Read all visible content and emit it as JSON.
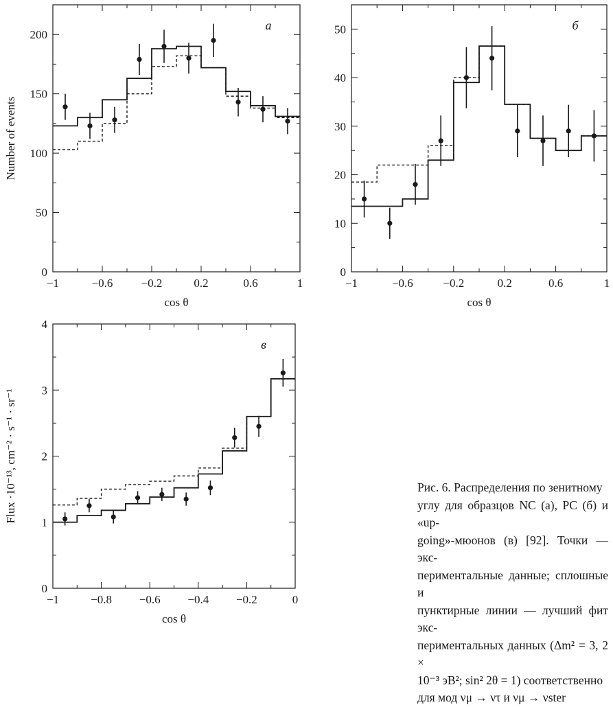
{
  "chart_data": [
    {
      "id": "a",
      "type": "line",
      "panel_label": "a",
      "xlabel": "cos θ",
      "ylabel": "Number of events",
      "xlim": [
        -1,
        1
      ],
      "ylim": [
        0,
        225
      ],
      "x_ticks": [
        -1,
        -0.6,
        -0.2,
        0.2,
        0.6,
        1
      ],
      "x_tick_labels": [
        "−1",
        "−0.6",
        "−0.2",
        "0.2",
        "0.6",
        "1"
      ],
      "y_ticks": [
        0,
        50,
        100,
        150,
        200
      ],
      "y_tick_labels": [
        "0",
        "50",
        "100",
        "150",
        "200"
      ],
      "bin_edges": [
        -1,
        -0.8,
        -0.6,
        -0.4,
        -0.2,
        0,
        0.2,
        0.4,
        0.6,
        0.8,
        1
      ],
      "series": [
        {
          "style": "solid",
          "values": [
            123,
            130,
            145,
            163,
            188,
            190,
            172,
            152,
            140,
            131
          ]
        },
        {
          "style": "dashed",
          "values": [
            103,
            110,
            125,
            150,
            173,
            182,
            172,
            148,
            138,
            130
          ]
        },
        {
          "style": "data points",
          "x": [
            -0.9,
            -0.7,
            -0.5,
            -0.3,
            -0.1,
            0.1,
            0.3,
            0.5,
            0.7,
            0.9
          ],
          "y": [
            139,
            123,
            128,
            179,
            190,
            180,
            195,
            143,
            137,
            127
          ],
          "err": [
            11,
            11,
            11,
            13,
            14,
            13,
            14,
            12,
            11,
            11
          ]
        }
      ]
    },
    {
      "id": "b",
      "type": "line",
      "panel_label": "б",
      "xlabel": "cos θ",
      "ylabel": "",
      "xlim": [
        -1,
        1
      ],
      "ylim": [
        0,
        55
      ],
      "x_ticks": [
        -1,
        -0.6,
        -0.2,
        0.2,
        0.6,
        1
      ],
      "x_tick_labels": [
        "−1",
        "−0.6",
        "−0.2",
        "0.2",
        "0.6",
        "1"
      ],
      "y_ticks": [
        0,
        10,
        20,
        30,
        40,
        50
      ],
      "y_tick_labels": [
        "0",
        "10",
        "20",
        "30",
        "40",
        "50"
      ],
      "bin_edges": [
        -1,
        -0.8,
        -0.6,
        -0.4,
        -0.2,
        0,
        0.2,
        0.4,
        0.6,
        0.8,
        1
      ],
      "series": [
        {
          "style": "solid",
          "values": [
            13.5,
            13.5,
            15,
            23,
            39,
            46.5,
            34.5,
            27.5,
            25,
            28
          ]
        },
        {
          "style": "dashed",
          "values": [
            18.5,
            22,
            22,
            26,
            40,
            46.5,
            34.5,
            27.5,
            25,
            28
          ]
        },
        {
          "style": "data points",
          "x": [
            -0.9,
            -0.7,
            -0.5,
            -0.3,
            -0.1,
            0.1,
            0.3,
            0.5,
            0.7,
            0.9
          ],
          "y": [
            15,
            10,
            18,
            27,
            40,
            44,
            29,
            27,
            29,
            28
          ],
          "err": [
            3.8,
            3.2,
            4.2,
            5.2,
            6.3,
            6.6,
            5.4,
            5.2,
            5.4,
            5.3
          ]
        }
      ]
    },
    {
      "id": "c",
      "type": "line",
      "panel_label": "в",
      "xlabel": "cos θ",
      "ylabel": "Flux ·10⁻¹³, cm⁻² · s⁻¹ · sr⁻¹",
      "xlim": [
        -1,
        0
      ],
      "ylim": [
        0,
        4
      ],
      "x_ticks": [
        -1,
        -0.8,
        -0.6,
        -0.4,
        -0.2,
        0
      ],
      "x_tick_labels": [
        "−1",
        "−0.8",
        "−0.6",
        "−0.4",
        "−0.2",
        "0"
      ],
      "y_ticks": [
        0,
        1,
        2,
        3,
        4
      ],
      "y_tick_labels": [
        "0",
        "1",
        "2",
        "3",
        "4"
      ],
      "bin_edges": [
        -1,
        -0.9,
        -0.8,
        -0.7,
        -0.6,
        -0.5,
        -0.4,
        -0.3,
        -0.2,
        -0.1,
        0
      ],
      "series": [
        {
          "style": "solid",
          "values": [
            1.0,
            1.1,
            1.18,
            1.28,
            1.38,
            1.52,
            1.73,
            2.08,
            2.6,
            3.17
          ]
        },
        {
          "style": "dashed",
          "values": [
            1.26,
            1.36,
            1.5,
            1.57,
            1.62,
            1.7,
            1.82,
            2.12,
            2.6,
            3.17
          ]
        },
        {
          "style": "data points",
          "x": [
            -0.95,
            -0.85,
            -0.75,
            -0.65,
            -0.55,
            -0.45,
            -0.35,
            -0.25,
            -0.15,
            -0.05
          ],
          "y": [
            1.05,
            1.25,
            1.08,
            1.37,
            1.42,
            1.35,
            1.52,
            2.28,
            2.45,
            3.26
          ],
          "err": [
            0.1,
            0.1,
            0.1,
            0.1,
            0.1,
            0.1,
            0.11,
            0.15,
            0.16,
            0.21
          ]
        }
      ]
    }
  ],
  "caption": {
    "lines": [
      "Рис. 6. Распределения по зенитному",
      "углу для образцов NC (а), PC (б) и «up-",
      "going»-мюонов (в) [92]. Точки — экс-",
      "периментальные данные; сплошные и",
      "пунктирные линии — лучший фит экс-",
      "периментальных данных (Δm² = 3, 2 ×",
      "10⁻³ эВ²; sin² 2θ = 1) соответственно",
      "для мод νμ → ντ и νμ → νster"
    ]
  }
}
